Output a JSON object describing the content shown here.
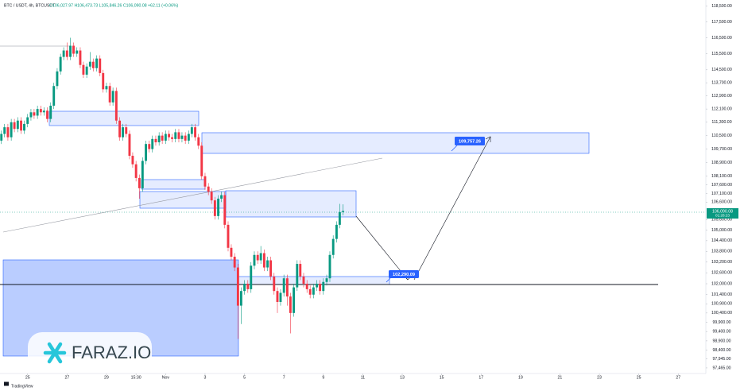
{
  "chart_data": {
    "type": "candlestick",
    "symbol": "BTC / USDT, 4h, BTCUSDT",
    "ohlc_text": "O106,027.97 H106,473.73 L105,846.26 C106,090.08 +62.11 (+0.06%)",
    "price_label": "106,090.08",
    "countdown": "01:28:23",
    "annotations": [
      "109,757.26",
      "102,290.09"
    ],
    "watermark": "FARAZ.IO",
    "footer": "TradingView",
    "up_color": "#089981",
    "down_color": "#f23645",
    "log_scale": true,
    "grid": false,
    "xlim": [
      23.6,
      59.4
    ],
    "xticks": [
      25,
      27,
      29,
      {
        "value": 30.5,
        "label": "15:30"
      },
      {
        "value": 32,
        "label": "Nov"
      },
      {
        "value": 34,
        "label": "3"
      },
      {
        "value": 36,
        "label": "5"
      },
      {
        "value": 38,
        "label": "7"
      },
      {
        "value": 40,
        "label": "9"
      },
      {
        "value": 42,
        "label": "11"
      },
      {
        "value": 44,
        "label": "13"
      },
      {
        "value": 46,
        "label": "15"
      },
      {
        "value": 48,
        "label": "17"
      },
      {
        "value": 50,
        "label": "19"
      },
      {
        "value": 52,
        "label": "21"
      },
      {
        "value": 54,
        "label": "23"
      },
      {
        "value": 56,
        "label": "25"
      },
      {
        "value": 58,
        "label": "27"
      }
    ],
    "ylim": [
      97170,
      118900
    ],
    "yticks": [
      {
        "value": 118500,
        "label": "118,500.00"
      },
      {
        "value": 117500,
        "label": "117,500.00"
      },
      {
        "value": 116500,
        "label": "116,500.00"
      },
      {
        "value": 115500,
        "label": "115,500.00"
      },
      {
        "value": 114500,
        "label": "114,500.00"
      },
      {
        "value": 113700,
        "label": "113,700.00"
      },
      {
        "value": 112900,
        "label": "112,900.00"
      },
      {
        "value": 112100,
        "label": "112,100.00"
      },
      {
        "value": 111300,
        "label": "111,300.00"
      },
      {
        "value": 110500,
        "label": "110,500.00"
      },
      {
        "value": 109700,
        "label": "109,700.00"
      },
      {
        "value": 108900,
        "label": "108,900.00"
      },
      {
        "value": 108100,
        "label": "108,100.00"
      },
      {
        "value": 107600,
        "label": "107,600.00"
      },
      {
        "value": 107100,
        "label": "107,100.00"
      },
      {
        "value": 106600,
        "label": "106,600.00"
      },
      {
        "value": 105600,
        "label": "105,600.00"
      },
      {
        "value": 105000,
        "label": "105,000.00"
      },
      {
        "value": 104400,
        "label": "104,400.00"
      },
      {
        "value": 103800,
        "label": "103,800.00"
      },
      {
        "value": 103200,
        "label": "103,200.00"
      },
      {
        "value": 102600,
        "label": "102,600.00"
      },
      {
        "value": 102000,
        "label": "102,000.00"
      },
      {
        "value": 101400,
        "label": "101,400.00"
      },
      {
        "value": 100900,
        "label": "100,900.00"
      },
      {
        "value": 100400,
        "label": "100,400.00"
      },
      {
        "value": 99900,
        "label": "99,900.00"
      },
      {
        "value": 99400,
        "label": "99,400.00"
      },
      {
        "value": 98900,
        "label": "98,900.00"
      },
      {
        "value": 98400,
        "label": "98,400.00"
      },
      {
        "value": 97945,
        "label": "97,945.00"
      },
      {
        "value": 97465,
        "label": "97,465.00"
      }
    ],
    "x": [
      23.67,
      23.83,
      24,
      24.17,
      24.33,
      24.5,
      24.67,
      24.83,
      25,
      25.17,
      25.33,
      25.5,
      25.67,
      25.83,
      26,
      26.17,
      26.33,
      26.5,
      26.67,
      26.83,
      27,
      27.17,
      27.33,
      27.5,
      27.67,
      27.83,
      28,
      28.17,
      28.33,
      28.5,
      28.67,
      28.83,
      29,
      29.17,
      29.33,
      29.5,
      29.67,
      29.83,
      30,
      30.17,
      30.33,
      30.5,
      30.67,
      30.83,
      31,
      31.17,
      31.33,
      31.5,
      31.67,
      31.83,
      32,
      32.17,
      32.33,
      32.5,
      32.67,
      32.83,
      33,
      33.17,
      33.33,
      33.5,
      33.67,
      33.83,
      34,
      34.17,
      34.33,
      34.5,
      34.67,
      34.83,
      35,
      35.17,
      35.33,
      35.5,
      35.67,
      35.83,
      36,
      36.17,
      36.33,
      36.5,
      36.67,
      36.83,
      37,
      37.17,
      37.33,
      37.5,
      37.67,
      37.83,
      38,
      38.17,
      38.33,
      38.5,
      38.67,
      38.83,
      39,
      39.17,
      39.33,
      39.5,
      39.67,
      39.83,
      40,
      40.17,
      40.33,
      40.5,
      40.67,
      40.83,
      41
    ],
    "open": [
      110200,
      110600,
      111000,
      110400,
      111300,
      110900,
      111400,
      110800,
      111200,
      111600,
      111900,
      111700,
      112100,
      111900,
      112000,
      111500,
      112300,
      113500,
      114400,
      115300,
      115700,
      115300,
      116000,
      115500,
      115700,
      114800,
      114200,
      114700,
      115000,
      114600,
      115200,
      114300,
      113300,
      113500,
      112500,
      113200,
      111400,
      110400,
      111000,
      110600,
      109300,
      108800,
      108000,
      107400,
      109000,
      110000,
      109700,
      110300,
      110100,
      110500,
      110200,
      110600,
      110400,
      110300,
      110700,
      110300,
      110500,
      110200,
      110600,
      111000,
      110400,
      109900,
      108100,
      107500,
      107200,
      106700,
      105800,
      106800,
      107000,
      105300,
      104000,
      103500,
      102900,
      100800,
      101600,
      102000,
      101700,
      103000,
      103600,
      103300,
      103700,
      102900,
      103300,
      102400,
      101600,
      101000,
      101500,
      102300,
      101300,
      100400,
      101800,
      103100,
      102400,
      102000,
      101700,
      101400,
      101800,
      102000,
      101600,
      102100,
      102300,
      103600,
      104500,
      105300,
      106027.97
    ],
    "high": [
      110800,
      111200,
      111200,
      111500,
      111500,
      111600,
      111600,
      111400,
      111800,
      112100,
      112100,
      112300,
      112300,
      112200,
      112200,
      112500,
      113700,
      114600,
      115500,
      115900,
      116200,
      116500,
      116200,
      115900,
      115900,
      115000,
      114900,
      115600,
      115200,
      115400,
      115400,
      114500,
      113700,
      113700,
      113400,
      113400,
      111600,
      111200,
      111200,
      110800,
      109500,
      109000,
      108200,
      109200,
      110200,
      110200,
      110500,
      110500,
      110700,
      110700,
      110800,
      110800,
      110600,
      110900,
      110900,
      110700,
      110700,
      110800,
      111200,
      111200,
      110600,
      110100,
      108300,
      107700,
      107400,
      106900,
      107000,
      107200,
      107200,
      105500,
      104200,
      103700,
      103100,
      101800,
      102200,
      102200,
      103200,
      103800,
      103800,
      104100,
      103900,
      103500,
      103500,
      102600,
      101800,
      101700,
      102500,
      102500,
      101500,
      102000,
      103300,
      103300,
      102600,
      102200,
      101900,
      102000,
      102200,
      102200,
      102300,
      102500,
      103800,
      104700,
      105500,
      106500,
      106473.73
    ],
    "low": [
      110000,
      110400,
      110200,
      110200,
      110700,
      110700,
      110600,
      110600,
      111000,
      111400,
      111500,
      111500,
      111700,
      111700,
      111300,
      111300,
      112100,
      113300,
      114200,
      115100,
      115100,
      115100,
      115300,
      115300,
      114600,
      114000,
      114000,
      114500,
      114400,
      114400,
      114100,
      113100,
      113100,
      112300,
      112300,
      111200,
      110200,
      110200,
      110400,
      109100,
      108600,
      107800,
      106800,
      107200,
      108800,
      109500,
      109500,
      109900,
      109900,
      110000,
      110000,
      110200,
      110100,
      110100,
      110100,
      110100,
      110000,
      110000,
      110400,
      110200,
      109700,
      107900,
      107300,
      107000,
      106500,
      105600,
      105600,
      106600,
      105100,
      103800,
      103300,
      102700,
      99000,
      99800,
      101400,
      101500,
      101500,
      102800,
      103100,
      103100,
      102700,
      102700,
      102200,
      101400,
      100400,
      100800,
      101300,
      100800,
      99300,
      100200,
      101600,
      102200,
      101800,
      101500,
      101200,
      101200,
      101600,
      101400,
      101400,
      101900,
      102100,
      103400,
      104300,
      105100,
      105846.26
    ],
    "close": [
      110600,
      111000,
      110400,
      111300,
      110900,
      111400,
      110800,
      111200,
      111600,
      111900,
      111700,
      112100,
      111900,
      112000,
      111500,
      112300,
      113500,
      114400,
      115300,
      115700,
      115300,
      116000,
      115500,
      115700,
      114800,
      114200,
      114700,
      115000,
      114600,
      115200,
      114300,
      113300,
      113500,
      112500,
      113200,
      111400,
      110400,
      111000,
      110600,
      109300,
      108800,
      108000,
      107400,
      109000,
      110000,
      109700,
      110300,
      110100,
      110500,
      110200,
      110600,
      110400,
      110300,
      110700,
      110300,
      110500,
      110200,
      110600,
      111000,
      110400,
      109900,
      108100,
      107500,
      107200,
      106700,
      105800,
      106800,
      107000,
      105300,
      104000,
      103500,
      102900,
      100800,
      101600,
      102000,
      101700,
      103000,
      103600,
      103300,
      103700,
      102900,
      103300,
      102400,
      101600,
      101000,
      101500,
      102300,
      101300,
      100400,
      101800,
      103100,
      102400,
      102000,
      101700,
      101400,
      101800,
      102000,
      101600,
      102100,
      102300,
      103600,
      104500,
      105300,
      106027.97,
      106090.08
    ]
  }
}
